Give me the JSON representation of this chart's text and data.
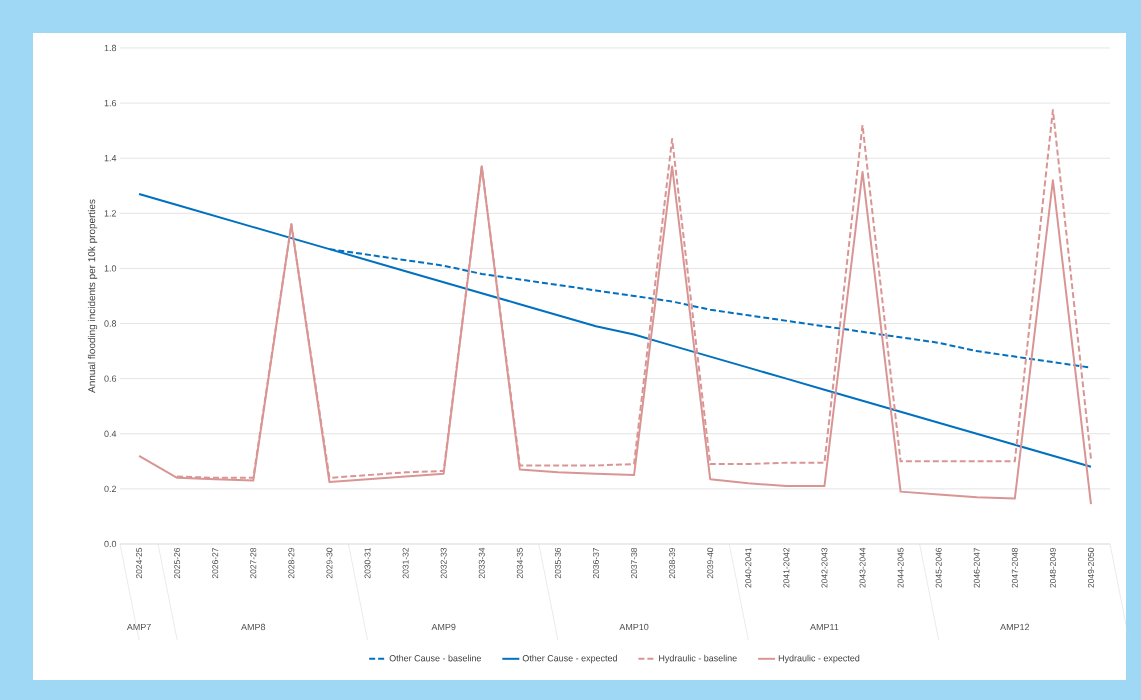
{
  "chart_data": {
    "type": "line",
    "ylabel": "Annual flooding incidents per 10k properties",
    "categories": [
      "2024-25",
      "2025-26",
      "2026-27",
      "2027-28",
      "2028-29",
      "2029-30",
      "2030-31",
      "2031-32",
      "2032-33",
      "2033-34",
      "2034-35",
      "2035-36",
      "2036-37",
      "2037-38",
      "2038-39",
      "2039-40",
      "2040-2041",
      "2041-2042",
      "2042-2043",
      "2043-2044",
      "2044-2045",
      "2045-2046",
      "2046-2047",
      "2047-2048",
      "2048-2049",
      "2049-2050"
    ],
    "series": [
      {
        "name": "Other Cause - baseline",
        "color": "#0070c0",
        "line_style": "dashed",
        "values": [
          null,
          null,
          null,
          null,
          null,
          1.07,
          1.05,
          1.03,
          1.01,
          0.98,
          0.96,
          0.94,
          0.92,
          0.9,
          0.88,
          0.85,
          0.83,
          0.81,
          0.79,
          0.77,
          0.75,
          0.73,
          0.7,
          0.68,
          0.66,
          0.64
        ]
      },
      {
        "name": "Other Cause - expected",
        "color": "#0070c0",
        "line_style": "solid",
        "values": [
          1.27,
          1.23,
          1.19,
          1.15,
          1.11,
          1.07,
          1.03,
          0.99,
          0.95,
          0.91,
          0.87,
          0.83,
          0.79,
          0.76,
          0.72,
          0.68,
          0.64,
          0.6,
          0.56,
          0.52,
          0.48,
          0.44,
          0.4,
          0.36,
          0.32,
          0.28
        ]
      },
      {
        "name": "Hydraulic - baseline",
        "color": "#d99594",
        "line_style": "dashed",
        "values": [
          null,
          0.245,
          0.24,
          0.24,
          1.16,
          0.24,
          0.25,
          0.26,
          0.265,
          1.37,
          0.285,
          0.285,
          0.285,
          0.29,
          1.47,
          0.29,
          0.29,
          0.295,
          0.295,
          1.52,
          0.3,
          0.3,
          0.3,
          0.3,
          1.575,
          0.31
        ]
      },
      {
        "name": "Hydraulic - expected",
        "color": "#d99594",
        "line_style": "solid",
        "values": [
          0.32,
          0.24,
          0.235,
          0.23,
          1.16,
          0.225,
          0.235,
          0.245,
          0.255,
          1.37,
          0.27,
          0.26,
          0.255,
          0.25,
          1.37,
          0.235,
          0.22,
          0.21,
          0.21,
          1.35,
          0.19,
          0.18,
          0.17,
          0.165,
          1.32,
          0.145
        ]
      }
    ],
    "ylim": [
      0,
      1.8
    ],
    "yticks": [
      {
        "value": 0,
        "label": "0.0"
      },
      {
        "value": 0.2,
        "label": "0.2"
      },
      {
        "value": 0.4,
        "label": "0.4"
      },
      {
        "value": 0.6,
        "label": "0.6"
      },
      {
        "value": 0.8,
        "label": "0.8"
      },
      {
        "value": 1.0,
        "label": "1.0"
      },
      {
        "value": 1.2,
        "label": "1.2"
      },
      {
        "value": 1.4,
        "label": "1.4"
      },
      {
        "value": 1.6,
        "label": "1.6"
      },
      {
        "value": 1.8,
        "label": "1.8"
      }
    ],
    "grid": "y",
    "legend": "bottom",
    "marker": "none",
    "annotations": [
      "AMP7",
      "AMP8",
      "AMP9",
      "AMP10",
      "AMP11",
      "AMP12"
    ]
  }
}
